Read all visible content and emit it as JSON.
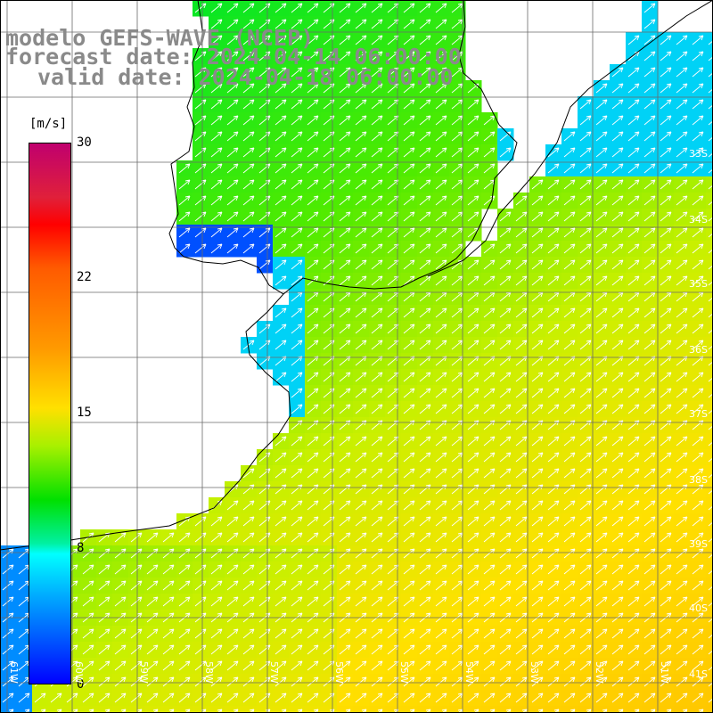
{
  "map": {
    "title": "modelo GEFS-WAVE (NCEP)",
    "forecast_date": "forecast date: 2024-04-14 06:00:00",
    "valid_date": "valid date: 2024-04-18 06:00:00",
    "variable_unit": "[m/s]",
    "colorbar": {
      "ticks": [
        "30",
        "22",
        "15",
        "8",
        "0"
      ],
      "colors": [
        "#c0006e",
        "#ff0000",
        "#ff9a00",
        "#ffe000",
        "#00e000",
        "#00ffff",
        "#0000ff"
      ]
    },
    "lat_labels": [
      "33S",
      "34S",
      "35S",
      "36S",
      "37S",
      "38S",
      "39S",
      "40S",
      "41S"
    ],
    "lon_labels": [
      "61W",
      "60W",
      "59W",
      "58W",
      "57W",
      "56W",
      "55W",
      "54W",
      "53W",
      "52W",
      "51W"
    ],
    "vector_direction": "northeast",
    "land_color": "#ffffff",
    "coastline_color": "#000000"
  }
}
